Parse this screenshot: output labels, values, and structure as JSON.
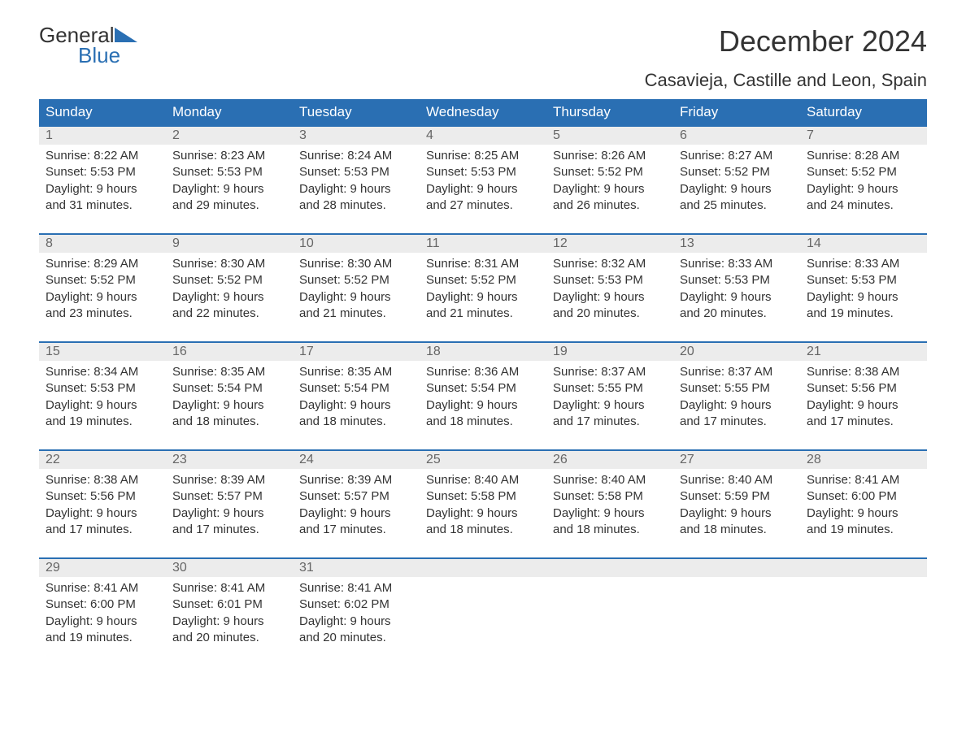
{
  "logo": {
    "text_general": "General",
    "text_blue": "Blue",
    "accent_color": "#2a6fb3"
  },
  "title": "December 2024",
  "location": "Casavieja, Castille and Leon, Spain",
  "colors": {
    "header_bg": "#2a6fb3",
    "header_text": "#ffffff",
    "daynum_bg": "#ececec",
    "daynum_text": "#666666",
    "body_text": "#333333",
    "page_bg": "#ffffff",
    "rule": "#2a6fb3"
  },
  "typography": {
    "month_title_fontsize": 36,
    "location_fontsize": 22,
    "weekday_fontsize": 17,
    "daynum_fontsize": 16,
    "cell_fontsize": 15
  },
  "weekdays": [
    "Sunday",
    "Monday",
    "Tuesday",
    "Wednesday",
    "Thursday",
    "Friday",
    "Saturday"
  ],
  "weeks": [
    [
      {
        "num": "1",
        "sunrise": "Sunrise: 8:22 AM",
        "sunset": "Sunset: 5:53 PM",
        "dl1": "Daylight: 9 hours",
        "dl2": "and 31 minutes."
      },
      {
        "num": "2",
        "sunrise": "Sunrise: 8:23 AM",
        "sunset": "Sunset: 5:53 PM",
        "dl1": "Daylight: 9 hours",
        "dl2": "and 29 minutes."
      },
      {
        "num": "3",
        "sunrise": "Sunrise: 8:24 AM",
        "sunset": "Sunset: 5:53 PM",
        "dl1": "Daylight: 9 hours",
        "dl2": "and 28 minutes."
      },
      {
        "num": "4",
        "sunrise": "Sunrise: 8:25 AM",
        "sunset": "Sunset: 5:53 PM",
        "dl1": "Daylight: 9 hours",
        "dl2": "and 27 minutes."
      },
      {
        "num": "5",
        "sunrise": "Sunrise: 8:26 AM",
        "sunset": "Sunset: 5:52 PM",
        "dl1": "Daylight: 9 hours",
        "dl2": "and 26 minutes."
      },
      {
        "num": "6",
        "sunrise": "Sunrise: 8:27 AM",
        "sunset": "Sunset: 5:52 PM",
        "dl1": "Daylight: 9 hours",
        "dl2": "and 25 minutes."
      },
      {
        "num": "7",
        "sunrise": "Sunrise: 8:28 AM",
        "sunset": "Sunset: 5:52 PM",
        "dl1": "Daylight: 9 hours",
        "dl2": "and 24 minutes."
      }
    ],
    [
      {
        "num": "8",
        "sunrise": "Sunrise: 8:29 AM",
        "sunset": "Sunset: 5:52 PM",
        "dl1": "Daylight: 9 hours",
        "dl2": "and 23 minutes."
      },
      {
        "num": "9",
        "sunrise": "Sunrise: 8:30 AM",
        "sunset": "Sunset: 5:52 PM",
        "dl1": "Daylight: 9 hours",
        "dl2": "and 22 minutes."
      },
      {
        "num": "10",
        "sunrise": "Sunrise: 8:30 AM",
        "sunset": "Sunset: 5:52 PM",
        "dl1": "Daylight: 9 hours",
        "dl2": "and 21 minutes."
      },
      {
        "num": "11",
        "sunrise": "Sunrise: 8:31 AM",
        "sunset": "Sunset: 5:52 PM",
        "dl1": "Daylight: 9 hours",
        "dl2": "and 21 minutes."
      },
      {
        "num": "12",
        "sunrise": "Sunrise: 8:32 AM",
        "sunset": "Sunset: 5:53 PM",
        "dl1": "Daylight: 9 hours",
        "dl2": "and 20 minutes."
      },
      {
        "num": "13",
        "sunrise": "Sunrise: 8:33 AM",
        "sunset": "Sunset: 5:53 PM",
        "dl1": "Daylight: 9 hours",
        "dl2": "and 20 minutes."
      },
      {
        "num": "14",
        "sunrise": "Sunrise: 8:33 AM",
        "sunset": "Sunset: 5:53 PM",
        "dl1": "Daylight: 9 hours",
        "dl2": "and 19 minutes."
      }
    ],
    [
      {
        "num": "15",
        "sunrise": "Sunrise: 8:34 AM",
        "sunset": "Sunset: 5:53 PM",
        "dl1": "Daylight: 9 hours",
        "dl2": "and 19 minutes."
      },
      {
        "num": "16",
        "sunrise": "Sunrise: 8:35 AM",
        "sunset": "Sunset: 5:54 PM",
        "dl1": "Daylight: 9 hours",
        "dl2": "and 18 minutes."
      },
      {
        "num": "17",
        "sunrise": "Sunrise: 8:35 AM",
        "sunset": "Sunset: 5:54 PM",
        "dl1": "Daylight: 9 hours",
        "dl2": "and 18 minutes."
      },
      {
        "num": "18",
        "sunrise": "Sunrise: 8:36 AM",
        "sunset": "Sunset: 5:54 PM",
        "dl1": "Daylight: 9 hours",
        "dl2": "and 18 minutes."
      },
      {
        "num": "19",
        "sunrise": "Sunrise: 8:37 AM",
        "sunset": "Sunset: 5:55 PM",
        "dl1": "Daylight: 9 hours",
        "dl2": "and 17 minutes."
      },
      {
        "num": "20",
        "sunrise": "Sunrise: 8:37 AM",
        "sunset": "Sunset: 5:55 PM",
        "dl1": "Daylight: 9 hours",
        "dl2": "and 17 minutes."
      },
      {
        "num": "21",
        "sunrise": "Sunrise: 8:38 AM",
        "sunset": "Sunset: 5:56 PM",
        "dl1": "Daylight: 9 hours",
        "dl2": "and 17 minutes."
      }
    ],
    [
      {
        "num": "22",
        "sunrise": "Sunrise: 8:38 AM",
        "sunset": "Sunset: 5:56 PM",
        "dl1": "Daylight: 9 hours",
        "dl2": "and 17 minutes."
      },
      {
        "num": "23",
        "sunrise": "Sunrise: 8:39 AM",
        "sunset": "Sunset: 5:57 PM",
        "dl1": "Daylight: 9 hours",
        "dl2": "and 17 minutes."
      },
      {
        "num": "24",
        "sunrise": "Sunrise: 8:39 AM",
        "sunset": "Sunset: 5:57 PM",
        "dl1": "Daylight: 9 hours",
        "dl2": "and 17 minutes."
      },
      {
        "num": "25",
        "sunrise": "Sunrise: 8:40 AM",
        "sunset": "Sunset: 5:58 PM",
        "dl1": "Daylight: 9 hours",
        "dl2": "and 18 minutes."
      },
      {
        "num": "26",
        "sunrise": "Sunrise: 8:40 AM",
        "sunset": "Sunset: 5:58 PM",
        "dl1": "Daylight: 9 hours",
        "dl2": "and 18 minutes."
      },
      {
        "num": "27",
        "sunrise": "Sunrise: 8:40 AM",
        "sunset": "Sunset: 5:59 PM",
        "dl1": "Daylight: 9 hours",
        "dl2": "and 18 minutes."
      },
      {
        "num": "28",
        "sunrise": "Sunrise: 8:41 AM",
        "sunset": "Sunset: 6:00 PM",
        "dl1": "Daylight: 9 hours",
        "dl2": "and 19 minutes."
      }
    ],
    [
      {
        "num": "29",
        "sunrise": "Sunrise: 8:41 AM",
        "sunset": "Sunset: 6:00 PM",
        "dl1": "Daylight: 9 hours",
        "dl2": "and 19 minutes."
      },
      {
        "num": "30",
        "sunrise": "Sunrise: 8:41 AM",
        "sunset": "Sunset: 6:01 PM",
        "dl1": "Daylight: 9 hours",
        "dl2": "and 20 minutes."
      },
      {
        "num": "31",
        "sunrise": "Sunrise: 8:41 AM",
        "sunset": "Sunset: 6:02 PM",
        "dl1": "Daylight: 9 hours",
        "dl2": "and 20 minutes."
      },
      {
        "num": "",
        "sunrise": "",
        "sunset": "",
        "dl1": "",
        "dl2": ""
      },
      {
        "num": "",
        "sunrise": "",
        "sunset": "",
        "dl1": "",
        "dl2": ""
      },
      {
        "num": "",
        "sunrise": "",
        "sunset": "",
        "dl1": "",
        "dl2": ""
      },
      {
        "num": "",
        "sunrise": "",
        "sunset": "",
        "dl1": "",
        "dl2": ""
      }
    ]
  ]
}
